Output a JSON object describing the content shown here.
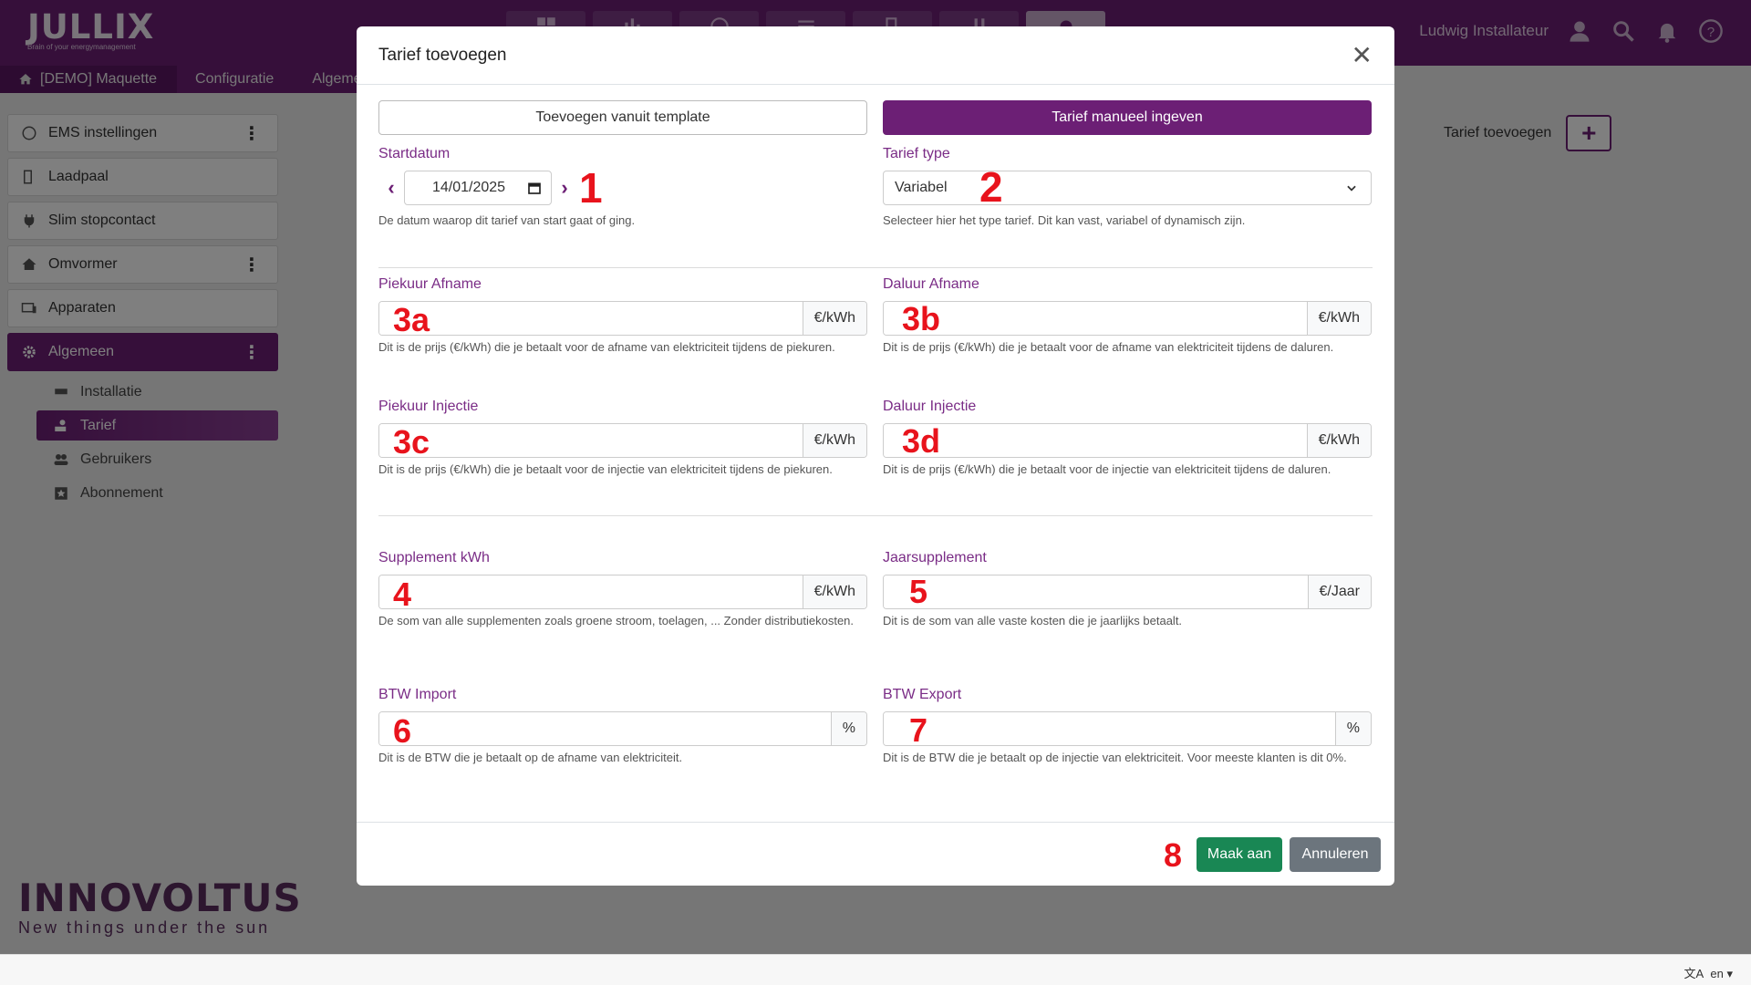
{
  "app": {
    "logo": "JULLIX",
    "logo_tagline": "Brain of your energymanagement",
    "user_name": "Ludwig Installateur",
    "accent_color": "#6c1f75"
  },
  "breadcrumb": [
    "[DEMO] Maquette",
    "Configuratie",
    "Algeme"
  ],
  "sidebar": {
    "items": [
      {
        "label": "EMS instellingen",
        "icon": "gauge-icon",
        "has_menu": true
      },
      {
        "label": "Laadpaal",
        "icon": "charger-icon",
        "has_menu": false
      },
      {
        "label": "Slim stopcontact",
        "icon": "plug-icon",
        "has_menu": false
      },
      {
        "label": "Omvormer",
        "icon": "home-solar-icon",
        "has_menu": true
      },
      {
        "label": "Apparaten",
        "icon": "devices-icon",
        "has_menu": false
      },
      {
        "label": "Algemeen",
        "icon": "gear-icon",
        "has_menu": true,
        "active": true
      }
    ],
    "sub_items": [
      {
        "label": "Installatie",
        "icon": "installation-icon"
      },
      {
        "label": "Tarief",
        "icon": "tariff-icon",
        "active": true
      },
      {
        "label": "Gebruikers",
        "icon": "users-icon"
      },
      {
        "label": "Abonnement",
        "icon": "star-icon"
      }
    ]
  },
  "brand_footer": {
    "name": "INNOVOLTUS",
    "tagline": "New things under the sun"
  },
  "page": {
    "add_tariff_label": "Tarief toevoegen"
  },
  "language": "en",
  "modal": {
    "title": "Tarief toevoegen",
    "mode_template": "Toevoegen vanuit template",
    "mode_manual": "Tarief manueel ingeven",
    "startdate": {
      "label": "Startdatum",
      "value": "14/01/2025",
      "help": "De datum waarop dit tarief van start gaat of ging.",
      "marker": "1"
    },
    "tariff_type": {
      "label": "Tarief type",
      "value": "Variabel",
      "help": "Selecteer hier het type tarief. Dit kan vast, variabel of dynamisch zijn.",
      "marker": "2"
    },
    "peak_import": {
      "label": "Piekuur Afname",
      "unit": "€/kWh",
      "help": "Dit is de prijs (€/kWh) die je betaalt voor de afname van elektriciteit tijdens de piekuren.",
      "marker": "3a"
    },
    "offpeak_import": {
      "label": "Daluur Afname",
      "unit": "€/kWh",
      "help": "Dit is de prijs (€/kWh) die je betaalt voor de afname van elektriciteit tijdens de daluren.",
      "marker": "3b"
    },
    "peak_injection": {
      "label": "Piekuur Injectie",
      "unit": "€/kWh",
      "help": "Dit is de prijs (€/kWh) die je betaalt voor de injectie van elektriciteit tijdens de piekuren.",
      "marker": "3c"
    },
    "offpeak_injection": {
      "label": "Daluur Injectie",
      "unit": "€/kWh",
      "help": "Dit is de prijs (€/kWh) die je betaalt voor de injectie van elektriciteit tijdens de daluren.",
      "marker": "3d"
    },
    "supplement_kwh": {
      "label": "Supplement kWh",
      "unit": "€/kWh",
      "help": "De som van alle supplementen zoals groene stroom, toelagen, ... Zonder distributiekosten.",
      "marker": "4"
    },
    "year_supplement": {
      "label": "Jaarsupplement",
      "unit": "€/Jaar",
      "help": "Dit is de som van alle vaste kosten die je jaarlijks betaalt.",
      "marker": "5"
    },
    "vat_import": {
      "label": "BTW Import",
      "unit": "%",
      "help": "Dit is de BTW die je betaalt op de afname van elektriciteit.",
      "marker": "6"
    },
    "vat_export": {
      "label": "BTW Export",
      "unit": "%",
      "help": "Dit is de BTW die je betaalt op de injectie van elektriciteit. Voor meeste klanten is dit 0%.",
      "marker": "7"
    },
    "create_label": "Maak aan",
    "cancel_label": "Annuleren",
    "footer_marker": "8"
  }
}
